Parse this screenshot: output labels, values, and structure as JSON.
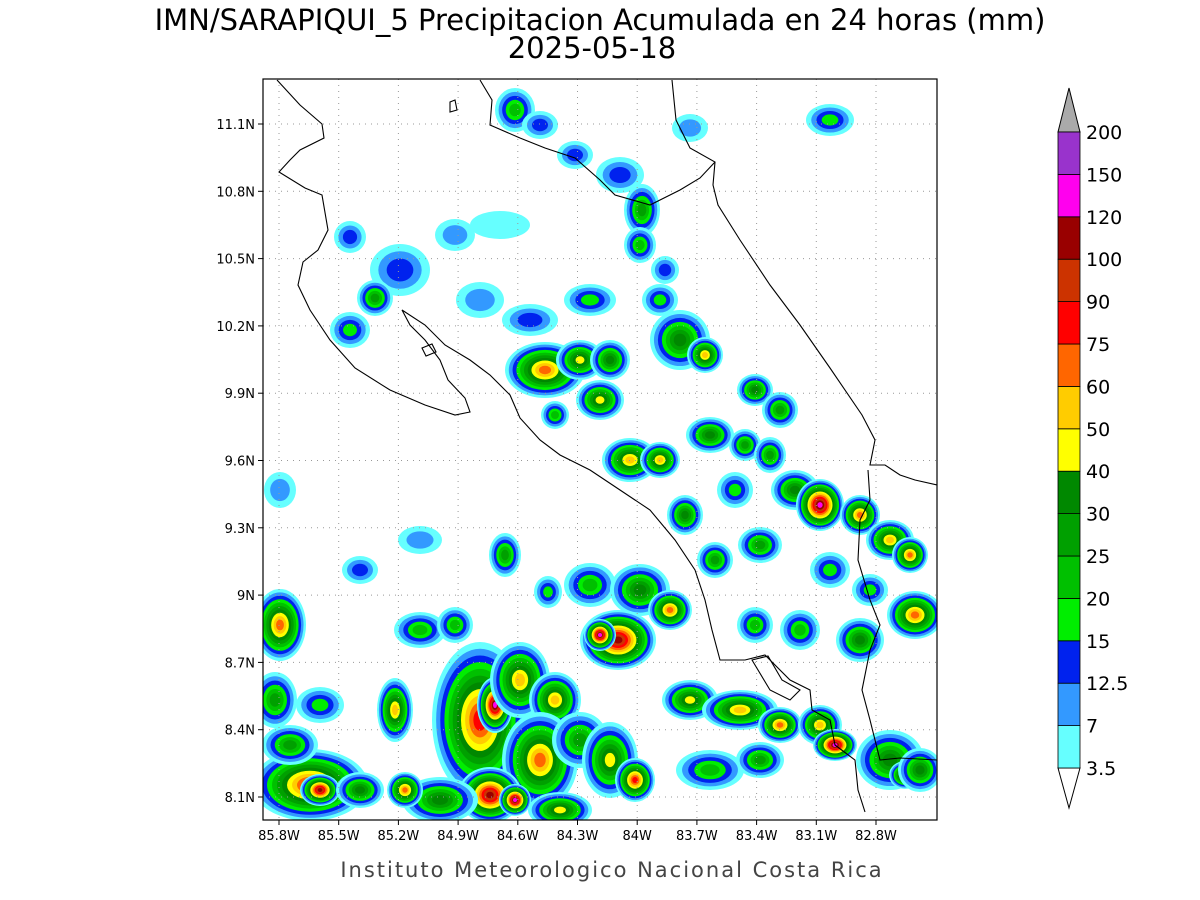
{
  "header": {
    "title": "IMN/SARAPIQUI_5 Precipitacion Acumulada en 24 horas (mm)",
    "date": "2025-05-18"
  },
  "map": {
    "lat_ticks": [
      {
        "value": 11.1,
        "label": "11.1N"
      },
      {
        "value": 10.8,
        "label": "10.8N"
      },
      {
        "value": 10.5,
        "label": "10.5N"
      },
      {
        "value": 10.2,
        "label": "10.2N"
      },
      {
        "value": 9.9,
        "label": "9.9N"
      },
      {
        "value": 9.6,
        "label": "9.6N"
      },
      {
        "value": 9.3,
        "label": "9.3N"
      },
      {
        "value": 9.0,
        "label": "9N"
      },
      {
        "value": 8.7,
        "label": "8.7N"
      },
      {
        "value": 8.4,
        "label": "8.4N"
      },
      {
        "value": 8.1,
        "label": "8.1N"
      }
    ],
    "lon_ticks": [
      {
        "value": -85.8,
        "label": "85.8W"
      },
      {
        "value": -85.5,
        "label": "85.5W"
      },
      {
        "value": -85.2,
        "label": "85.2W"
      },
      {
        "value": -84.9,
        "label": "84.9W"
      },
      {
        "value": -84.6,
        "label": "84.6W"
      },
      {
        "value": -84.3,
        "label": "84.3W"
      },
      {
        "value": -84.0,
        "label": "84W"
      },
      {
        "value": -83.7,
        "label": "83.7W"
      },
      {
        "value": -83.4,
        "label": "83.4W"
      },
      {
        "value": -83.1,
        "label": "83.1W"
      },
      {
        "value": -82.8,
        "label": "82.8W"
      }
    ],
    "grid": true
  },
  "colorbar": {
    "levels": [
      3.5,
      7,
      12.5,
      15,
      20,
      25,
      30,
      40,
      50,
      60,
      75,
      90,
      100,
      120,
      150,
      200
    ],
    "colors": [
      "#66ffff",
      "#3399ff",
      "#0022ee",
      "#00ee00",
      "#00c000",
      "#00a000",
      "#008800",
      "#ffff00",
      "#ffcc00",
      "#ff6600",
      "#ff0000",
      "#cc3300",
      "#990000",
      "#ff00ee",
      "#9933cc",
      "#f4f4f4"
    ],
    "under_color": "#ffffff",
    "over_color": "#aaaaaa"
  },
  "footer": {
    "credit": "Instituto Meteorologico Nacional Costa Rica"
  }
}
